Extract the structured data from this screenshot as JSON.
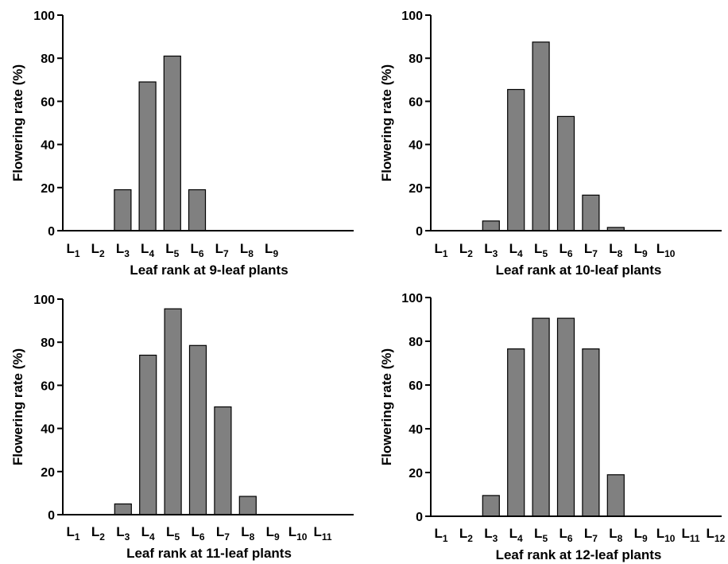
{
  "chart_data": [
    {
      "type": "bar",
      "categories": [
        "L1",
        "L2",
        "L3",
        "L4",
        "L5",
        "L6",
        "L7",
        "L8",
        "L9"
      ],
      "values": [
        0,
        0,
        19,
        69,
        81,
        19,
        0,
        0,
        0
      ],
      "title": "",
      "xlabel": "Leaf rank at 9-leaf plants",
      "ylabel": "Flowering rate (%)",
      "ylim": [
        0,
        100
      ],
      "yticks": [
        "0",
        "20",
        "40",
        "60",
        "80",
        "100"
      ],
      "bar_color": "#808080",
      "grid": false
    },
    {
      "type": "bar",
      "categories": [
        "L1",
        "L2",
        "L3",
        "L4",
        "L5",
        "L6",
        "L7",
        "L8",
        "L9",
        "L10"
      ],
      "values": [
        0,
        0,
        4.5,
        65.5,
        87.5,
        53,
        16.5,
        1.5,
        0,
        0
      ],
      "title": "",
      "xlabel": "Leaf rank at 10-leaf plants",
      "ylabel": "Flowering rate (%)",
      "ylim": [
        0,
        100
      ],
      "yticks": [
        "0",
        "20",
        "40",
        "60",
        "80",
        "100"
      ],
      "bar_color": "#808080",
      "grid": false
    },
    {
      "type": "bar",
      "categories": [
        "L1",
        "L2",
        "L3",
        "L4",
        "L5",
        "L6",
        "L7",
        "L8",
        "L9",
        "L10",
        "L11"
      ],
      "values": [
        0,
        0,
        5,
        74,
        95.5,
        78.5,
        50,
        8.5,
        0,
        0,
        0
      ],
      "title": "",
      "xlabel": "Leaf rank at 11-leaf plants",
      "ylabel": "Flowering rate (%)",
      "ylim": [
        0,
        100
      ],
      "yticks": [
        "0",
        "20",
        "40",
        "60",
        "80",
        "100"
      ],
      "bar_color": "#808080",
      "grid": false
    },
    {
      "type": "bar",
      "categories": [
        "L1",
        "L2",
        "L3",
        "L4",
        "L5",
        "L6",
        "L7",
        "L8",
        "L9",
        "L10",
        "L11",
        "L12"
      ],
      "values": [
        0,
        0,
        9.5,
        76.5,
        90.5,
        90.5,
        76.5,
        19,
        0,
        0,
        0,
        0
      ],
      "title": "",
      "xlabel": "Leaf rank at 12-leaf plants",
      "ylabel": "Flowering rate (%)",
      "ylim": [
        0,
        100
      ],
      "yticks": [
        "0",
        "20",
        "40",
        "60",
        "80",
        "100"
      ],
      "bar_color": "#808080",
      "grid": false
    }
  ]
}
